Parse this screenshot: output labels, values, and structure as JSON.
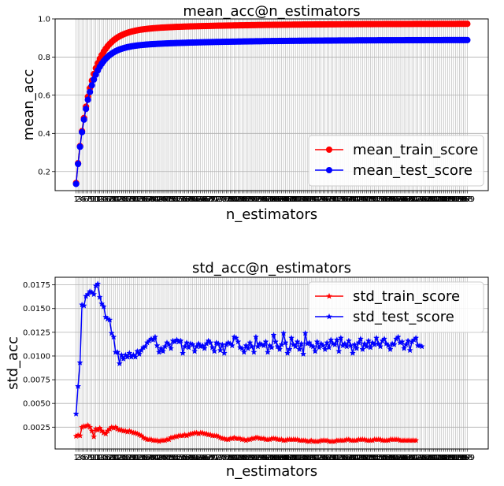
{
  "chart_data": [
    {
      "type": "line",
      "title": "mean_acc@n_estimators",
      "xlabel": "n_estimators",
      "ylabel": "mean_acc",
      "x_range": [
        1,
        199
      ],
      "ylim": [
        0.1,
        1.0
      ],
      "yticks": [
        "0.2",
        "0.4",
        "0.6",
        "0.8",
        "1.0"
      ],
      "grid": true,
      "legend_position": "lower-right",
      "series": [
        {
          "name": "mean_train_score",
          "color": "#ff0000",
          "marker": "circle",
          "start": 0.14,
          "plateau": 0.975,
          "rate": 0.14
        },
        {
          "name": "mean_test_score",
          "color": "#0000ff",
          "marker": "circle",
          "start": 0.135,
          "plateau": 0.89,
          "rate": 0.16
        }
      ]
    },
    {
      "type": "line",
      "title": "std_acc@n_estimators",
      "xlabel": "n_estimators",
      "ylabel": "std_acc",
      "x_range": [
        1,
        199
      ],
      "ylim": [
        0.0002,
        0.0183
      ],
      "yticks": [
        "0.0025",
        "0.0050",
        "0.0075",
        "0.0100",
        "0.0125",
        "0.0150",
        "0.0175"
      ],
      "grid": true,
      "legend_position": "top-right",
      "series": [
        {
          "name": "std_train_score",
          "color": "#ff0000",
          "marker": "star",
          "values": [
            0.00155,
            0.00165,
            0.0016,
            0.0025,
            0.0026,
            0.0026,
            0.0027,
            0.0025,
            0.0021,
            0.0015,
            0.0023,
            0.0022,
            0.0024,
            0.0021,
            0.0019,
            0.0018,
            0.0021,
            0.0023,
            0.0025,
            0.0024,
            0.0025,
            0.0023,
            0.0022,
            0.0022,
            0.0021,
            0.0021,
            0.002,
            0.0021,
            0.002,
            0.0019,
            0.0019,
            0.0018,
            0.0017,
            0.0016,
            0.0014,
            0.0013,
            0.0012,
            0.0012,
            0.0012,
            0.0011,
            0.0011,
            0.0011,
            0.001,
            0.0011,
            0.0011,
            0.0011,
            0.0012,
            0.0012,
            0.0014,
            0.0014,
            0.0015,
            0.0015,
            0.0016,
            0.0016,
            0.0016,
            0.0017,
            0.0016,
            0.0017,
            0.0018,
            0.0018,
            0.0019,
            0.0019,
            0.0018,
            0.0019,
            0.0019,
            0.0018,
            0.0018,
            0.0017,
            0.0017,
            0.0016,
            0.0016,
            0.0016,
            0.0015,
            0.0014,
            0.0013,
            0.0013,
            0.0012,
            0.0012,
            0.0013,
            0.0013,
            0.0014,
            0.0013,
            0.0013,
            0.0013,
            0.0012,
            0.0012,
            0.0011,
            0.0012,
            0.0012,
            0.0013,
            0.0013,
            0.0014,
            0.0014,
            0.0013,
            0.0013,
            0.0013,
            0.0012,
            0.0012,
            0.0012,
            0.0013,
            0.0013,
            0.0013,
            0.0012,
            0.0012,
            0.0012,
            0.0011,
            0.0011,
            0.0012,
            0.0012,
            0.0012,
            0.0012,
            0.0012,
            0.0012,
            0.0011,
            0.0011,
            0.0011,
            0.0011,
            0.001,
            0.001,
            0.0011,
            0.001,
            0.001,
            0.001,
            0.001,
            0.0011,
            0.0011,
            0.0011,
            0.0011,
            0.001,
            0.001,
            0.001,
            0.001,
            0.0011,
            0.0011,
            0.0011,
            0.0011,
            0.0011,
            0.0012,
            0.0012,
            0.0011,
            0.0011,
            0.0011,
            0.0011,
            0.0012,
            0.0012,
            0.0012,
            0.0012,
            0.0011,
            0.0011,
            0.0011,
            0.0011,
            0.0012,
            0.0012,
            0.0012,
            0.0012,
            0.0011,
            0.0011,
            0.0011,
            0.0011,
            0.0012,
            0.0012,
            0.0012,
            0.0012,
            0.0012,
            0.0011,
            0.0011,
            0.0011,
            0.0011,
            0.0011,
            0.0011,
            0.0011,
            0.0011,
            0.0011
          ]
        },
        {
          "name": "std_test_score",
          "color": "#0000ff",
          "marker": "star",
          "values": [
            0.0039,
            0.0068,
            0.0093,
            0.0154,
            0.0153,
            0.0163,
            0.0165,
            0.0168,
            0.0167,
            0.0165,
            0.0174,
            0.0176,
            0.0162,
            0.0155,
            0.0152,
            0.0141,
            0.0139,
            0.0138,
            0.0124,
            0.012,
            0.0104,
            0.0104,
            0.0092,
            0.0101,
            0.0097,
            0.0101,
            0.0099,
            0.0103,
            0.0099,
            0.0101,
            0.0099,
            0.0105,
            0.0102,
            0.0106,
            0.0109,
            0.011,
            0.0114,
            0.0116,
            0.0118,
            0.0117,
            0.012,
            0.0111,
            0.0104,
            0.0108,
            0.0105,
            0.011,
            0.0114,
            0.0112,
            0.0108,
            0.0116,
            0.0115,
            0.0117,
            0.0115,
            0.0116,
            0.0103,
            0.011,
            0.0114,
            0.0109,
            0.0113,
            0.0112,
            0.0105,
            0.011,
            0.0113,
            0.011,
            0.0111,
            0.0108,
            0.0113,
            0.0116,
            0.0114,
            0.0109,
            0.0105,
            0.0114,
            0.0113,
            0.0106,
            0.0112,
            0.0103,
            0.0112,
            0.0114,
            0.0113,
            0.0111,
            0.012,
            0.0119,
            0.0115,
            0.0109,
            0.0108,
            0.0104,
            0.0111,
            0.0108,
            0.0114,
            0.011,
            0.0104,
            0.012,
            0.011,
            0.0113,
            0.0112,
            0.0111,
            0.0115,
            0.0104,
            0.0111,
            0.0109,
            0.0122,
            0.0115,
            0.011,
            0.0107,
            0.0112,
            0.0124,
            0.0114,
            0.0103,
            0.0107,
            0.0119,
            0.0112,
            0.011,
            0.0115,
            0.0107,
            0.0113,
            0.0102,
            0.0124,
            0.0113,
            0.0114,
            0.0111,
            0.011,
            0.0105,
            0.0115,
            0.0109,
            0.0113,
            0.0111,
            0.0107,
            0.0114,
            0.0109,
            0.0117,
            0.0113,
            0.0112,
            0.0117,
            0.0105,
            0.0119,
            0.0111,
            0.0113,
            0.011,
            0.0116,
            0.0111,
            0.0103,
            0.0112,
            0.0108,
            0.0114,
            0.0118,
            0.0107,
            0.0113,
            0.011,
            0.0116,
            0.0109,
            0.0114,
            0.0112,
            0.0119,
            0.0113,
            0.011,
            0.0116,
            0.0118,
            0.0113,
            0.0111,
            0.0107,
            0.0113,
            0.0112,
            0.0118,
            0.012,
            0.0114,
            0.0115,
            0.0108,
            0.0112,
            0.0116,
            0.0106,
            0.0115,
            0.0117,
            0.0119,
            0.0111,
            0.0111,
            0.011
          ]
        }
      ]
    }
  ]
}
